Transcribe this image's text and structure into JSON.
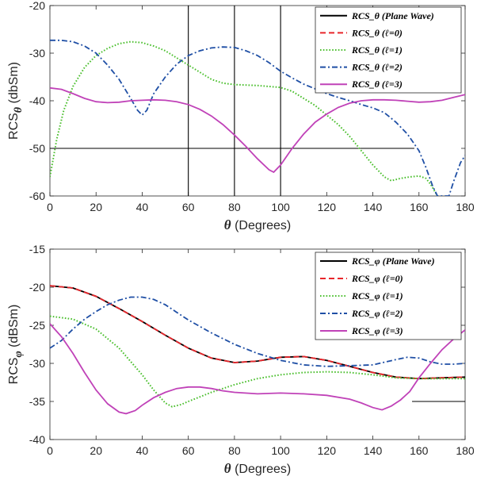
{
  "colors": {
    "plane_wave": "#000000",
    "l0": "#e8262b",
    "l1": "#4bbf2e",
    "l2": "#1f4fa5",
    "l3": "#c042b8"
  },
  "chart_data": [
    {
      "type": "line",
      "xlabel": "θ (Degrees)",
      "ylabel": "RCS_θ (dbSm)",
      "xlim": [
        0,
        180
      ],
      "ylim": [
        -60,
        -20
      ],
      "xticks": [
        "0",
        "20",
        "40",
        "60",
        "80",
        "100",
        "120",
        "140",
        "160",
        "180"
      ],
      "yticks": [
        "-60",
        "-50",
        "-40",
        "-30",
        "-20"
      ],
      "grid": false,
      "legend": "top-right",
      "series": [
        {
          "name": "RCS_θ (Plane Wave)",
          "style": "solid",
          "color": "#000000",
          "segments": [
            [
              [
                0,
                -50
              ],
              [
                158,
                -50
              ]
            ],
            [
              [
                60,
                -20
              ],
              [
                60,
                -60
              ]
            ],
            [
              [
                80,
                -20
              ],
              [
                80,
                -60
              ]
            ],
            [
              [
                100,
                -20
              ],
              [
                100,
                -60
              ]
            ]
          ]
        },
        {
          "name": "RCS_θ (ℓ=0)",
          "style": "dashed",
          "color": "#e8262b",
          "points": []
        },
        {
          "name": "RCS_θ (ℓ=1)",
          "style": "dotted",
          "color": "#4bbf2e",
          "points": [
            [
              0,
              -56
            ],
            [
              3,
              -48
            ],
            [
              6,
              -42
            ],
            [
              10,
              -37
            ],
            [
              15,
              -33
            ],
            [
              20,
              -30.5
            ],
            [
              25,
              -29
            ],
            [
              30,
              -28
            ],
            [
              35,
              -27.6
            ],
            [
              40,
              -27.8
            ],
            [
              45,
              -28.5
            ],
            [
              50,
              -29.5
            ],
            [
              55,
              -31
            ],
            [
              60,
              -32.5
            ],
            [
              65,
              -34
            ],
            [
              70,
              -35.5
            ],
            [
              75,
              -36.3
            ],
            [
              80,
              -36.6
            ],
            [
              90,
              -36.8
            ],
            [
              100,
              -37.2
            ],
            [
              105,
              -38
            ],
            [
              110,
              -39.5
            ],
            [
              115,
              -41
            ],
            [
              120,
              -43
            ],
            [
              125,
              -45
            ],
            [
              130,
              -47.5
            ],
            [
              135,
              -50.5
            ],
            [
              140,
              -53.5
            ],
            [
              145,
              -56
            ],
            [
              148,
              -56.8
            ],
            [
              152,
              -56.3
            ],
            [
              156,
              -56
            ],
            [
              160,
              -55.8
            ],
            [
              163,
              -56.3
            ],
            [
              165,
              -57.5
            ],
            [
              168,
              -60
            ]
          ]
        },
        {
          "name": "RCS_θ (ℓ=2)",
          "style": "dashdot",
          "color": "#1f4fa5",
          "points": [
            [
              0,
              -27.3
            ],
            [
              5,
              -27.3
            ],
            [
              10,
              -27.6
            ],
            [
              15,
              -28.5
            ],
            [
              20,
              -30
            ],
            [
              25,
              -32.5
            ],
            [
              30,
              -35.5
            ],
            [
              35,
              -39.5
            ],
            [
              38,
              -42
            ],
            [
              40,
              -43
            ],
            [
              42,
              -42
            ],
            [
              45,
              -38.5
            ],
            [
              50,
              -35
            ],
            [
              55,
              -32.3
            ],
            [
              60,
              -30.5
            ],
            [
              65,
              -29.5
            ],
            [
              70,
              -28.9
            ],
            [
              75,
              -28.7
            ],
            [
              80,
              -28.8
            ],
            [
              85,
              -29.5
            ],
            [
              90,
              -30.5
            ],
            [
              95,
              -32
            ],
            [
              100,
              -33.8
            ],
            [
              105,
              -35.2
            ],
            [
              110,
              -36.5
            ],
            [
              115,
              -37.5
            ],
            [
              120,
              -38.5
            ],
            [
              125,
              -39.3
            ],
            [
              130,
              -40
            ],
            [
              135,
              -40.8
            ],
            [
              140,
              -41.5
            ],
            [
              145,
              -42.5
            ],
            [
              150,
              -44.5
            ],
            [
              155,
              -47
            ],
            [
              160,
              -50.5
            ],
            [
              163,
              -54
            ],
            [
              166,
              -58
            ],
            [
              168,
              -60
            ],
            [
              173,
              -60
            ],
            [
              175,
              -57
            ],
            [
              178,
              -53
            ],
            [
              180,
              -51.5
            ]
          ]
        },
        {
          "name": "RCS_θ (ℓ=3)",
          "style": "solid",
          "color": "#c042b8",
          "points": [
            [
              0,
              -37.3
            ],
            [
              5,
              -37.6
            ],
            [
              10,
              -38.5
            ],
            [
              15,
              -39.5
            ],
            [
              20,
              -40.2
            ],
            [
              25,
              -40.4
            ],
            [
              30,
              -40.3
            ],
            [
              35,
              -40
            ],
            [
              40,
              -39.9
            ],
            [
              45,
              -39.8
            ],
            [
              50,
              -39.9
            ],
            [
              55,
              -40.2
            ],
            [
              60,
              -40.8
            ],
            [
              65,
              -41.8
            ],
            [
              70,
              -43.2
            ],
            [
              75,
              -45
            ],
            [
              80,
              -47.2
            ],
            [
              85,
              -49.6
            ],
            [
              90,
              -52.2
            ],
            [
              95,
              -54.5
            ],
            [
              97,
              -55
            ],
            [
              100,
              -53.5
            ],
            [
              105,
              -50
            ],
            [
              110,
              -47
            ],
            [
              115,
              -44.5
            ],
            [
              120,
              -42.8
            ],
            [
              125,
              -41.4
            ],
            [
              130,
              -40.5
            ],
            [
              135,
              -40
            ],
            [
              140,
              -39.8
            ],
            [
              145,
              -39.8
            ],
            [
              150,
              -39.9
            ],
            [
              155,
              -40.1
            ],
            [
              160,
              -40.3
            ],
            [
              165,
              -40.2
            ],
            [
              170,
              -39.9
            ],
            [
              175,
              -39.3
            ],
            [
              180,
              -38.7
            ]
          ]
        }
      ]
    },
    {
      "type": "line",
      "xlabel": "θ (Degrees)",
      "ylabel": "RCS_φ (dBSm)",
      "xlim": [
        0,
        180
      ],
      "ylim": [
        -40,
        -15
      ],
      "xticks": [
        "0",
        "20",
        "40",
        "60",
        "80",
        "100",
        "120",
        "140",
        "160",
        "180"
      ],
      "yticks": [
        "-40",
        "-35",
        "-30",
        "-25",
        "-20",
        "-15"
      ],
      "grid": false,
      "legend": "top-right",
      "series": [
        {
          "name": "RCS_φ (Plane Wave)",
          "style": "solid",
          "color": "#000000",
          "points": [
            [
              0,
              -19.8
            ],
            [
              10,
              -20.1
            ],
            [
              20,
              -21.2
            ],
            [
              30,
              -22.8
            ],
            [
              40,
              -24.5
            ],
            [
              50,
              -26.3
            ],
            [
              60,
              -28
            ],
            [
              70,
              -29.3
            ],
            [
              80,
              -29.9
            ],
            [
              90,
              -29.7
            ],
            [
              100,
              -29.2
            ],
            [
              110,
              -29.1
            ],
            [
              120,
              -29.6
            ],
            [
              130,
              -30.4
            ],
            [
              140,
              -31.2
            ],
            [
              150,
              -31.8
            ],
            [
              160,
              -32
            ],
            [
              170,
              -31.9
            ],
            [
              180,
              -31.8
            ]
          ],
          "segments": [
            [
              [
                157,
                -35
              ],
              [
                180,
                -35
              ]
            ]
          ]
        },
        {
          "name": "RCS_φ (ℓ=0)",
          "style": "dashed",
          "color": "#e8262b",
          "points": [
            [
              0,
              -19.8
            ],
            [
              10,
              -20.1
            ],
            [
              20,
              -21.2
            ],
            [
              30,
              -22.8
            ],
            [
              40,
              -24.5
            ],
            [
              50,
              -26.3
            ],
            [
              60,
              -28
            ],
            [
              70,
              -29.3
            ],
            [
              80,
              -29.9
            ],
            [
              90,
              -29.7
            ],
            [
              100,
              -29.2
            ],
            [
              110,
              -29.1
            ],
            [
              120,
              -29.6
            ],
            [
              130,
              -30.4
            ],
            [
              140,
              -31.2
            ],
            [
              150,
              -31.8
            ],
            [
              160,
              -32
            ],
            [
              170,
              -31.9
            ],
            [
              180,
              -31.8
            ]
          ]
        },
        {
          "name": "RCS_φ (ℓ=1)",
          "style": "dotted",
          "color": "#4bbf2e",
          "points": [
            [
              0,
              -23.8
            ],
            [
              10,
              -24.2
            ],
            [
              20,
              -25.5
            ],
            [
              30,
              -28
            ],
            [
              40,
              -31.5
            ],
            [
              45,
              -33.5
            ],
            [
              50,
              -35.2
            ],
            [
              53,
              -35.7
            ],
            [
              57,
              -35.4
            ],
            [
              60,
              -35
            ],
            [
              70,
              -33.8
            ],
            [
              80,
              -32.8
            ],
            [
              90,
              -32
            ],
            [
              100,
              -31.5
            ],
            [
              110,
              -31.2
            ],
            [
              120,
              -31.1
            ],
            [
              130,
              -31.2
            ],
            [
              140,
              -31.5
            ],
            [
              150,
              -31.9
            ],
            [
              160,
              -32
            ],
            [
              170,
              -32
            ],
            [
              180,
              -32
            ]
          ]
        },
        {
          "name": "RCS_φ (ℓ=2)",
          "style": "dashdot",
          "color": "#1f4fa5",
          "points": [
            [
              0,
              -28
            ],
            [
              5,
              -27
            ],
            [
              10,
              -25.5
            ],
            [
              15,
              -24.2
            ],
            [
              20,
              -23.2
            ],
            [
              25,
              -22.3
            ],
            [
              30,
              -21.7
            ],
            [
              35,
              -21.3
            ],
            [
              40,
              -21.3
            ],
            [
              45,
              -21.6
            ],
            [
              50,
              -22.3
            ],
            [
              55,
              -23.3
            ],
            [
              60,
              -24.3
            ],
            [
              70,
              -26
            ],
            [
              80,
              -27.5
            ],
            [
              90,
              -28.7
            ],
            [
              100,
              -29.6
            ],
            [
              110,
              -30.2
            ],
            [
              120,
              -30.4
            ],
            [
              130,
              -30.3
            ],
            [
              140,
              -30.2
            ],
            [
              150,
              -29.5
            ],
            [
              155,
              -29.2
            ],
            [
              160,
              -29.3
            ],
            [
              165,
              -29.8
            ],
            [
              170,
              -30.1
            ],
            [
              175,
              -30.1
            ],
            [
              180,
              -30
            ]
          ]
        },
        {
          "name": "RCS_φ (ℓ=3)",
          "style": "solid",
          "color": "#c042b8",
          "points": [
            [
              0,
              -24.8
            ],
            [
              5,
              -26.5
            ],
            [
              10,
              -28.7
            ],
            [
              15,
              -31.2
            ],
            [
              20,
              -33.5
            ],
            [
              25,
              -35.3
            ],
            [
              30,
              -36.4
            ],
            [
              33,
              -36.6
            ],
            [
              37,
              -36.2
            ],
            [
              40,
              -35.5
            ],
            [
              45,
              -34.5
            ],
            [
              50,
              -33.8
            ],
            [
              55,
              -33.3
            ],
            [
              60,
              -33.1
            ],
            [
              65,
              -33.1
            ],
            [
              70,
              -33.3
            ],
            [
              75,
              -33.6
            ],
            [
              80,
              -33.8
            ],
            [
              90,
              -34
            ],
            [
              100,
              -33.9
            ],
            [
              110,
              -34
            ],
            [
              120,
              -34.2
            ],
            [
              130,
              -34.7
            ],
            [
              135,
              -35.2
            ],
            [
              140,
              -35.8
            ],
            [
              144,
              -36.1
            ],
            [
              148,
              -35.6
            ],
            [
              152,
              -34.8
            ],
            [
              156,
              -33.7
            ],
            [
              160,
              -31.9
            ],
            [
              165,
              -30
            ],
            [
              170,
              -28.2
            ],
            [
              175,
              -26.8
            ],
            [
              180,
              -25.6
            ]
          ]
        }
      ]
    }
  ]
}
